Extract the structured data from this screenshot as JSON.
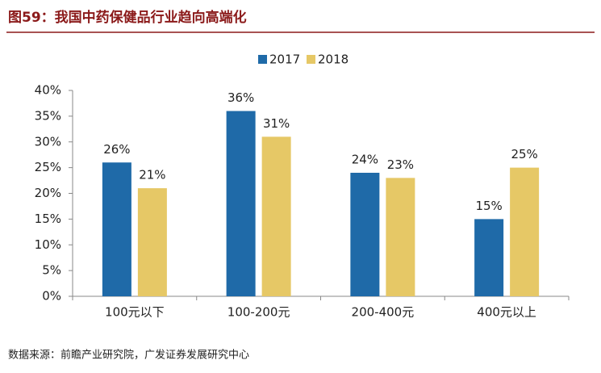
{
  "chart_data": {
    "type": "bar",
    "title": "图59：我国中药保健品行业趋向高端化",
    "source": "数据来源：前瞻产业研究院，广发证券发展研究中心",
    "categories": [
      "100元以下",
      "100-200元",
      "200-400元",
      "400元以上"
    ],
    "series": [
      {
        "name": "2017",
        "color": "#1f6aa8",
        "values": [
          26,
          36,
          24,
          15
        ],
        "value_labels": [
          "26%",
          "36%",
          "24%",
          "15%"
        ]
      },
      {
        "name": "2018",
        "color": "#e6c866",
        "values": [
          21,
          31,
          23,
          25
        ],
        "value_labels": [
          "21%",
          "31%",
          "23%",
          "25%"
        ]
      }
    ],
    "ylim": [
      0,
      40
    ],
    "yticks": [
      {
        "value": 0,
        "label": "0%"
      },
      {
        "value": 5,
        "label": "5%"
      },
      {
        "value": 10,
        "label": "10%"
      },
      {
        "value": 15,
        "label": "15%"
      },
      {
        "value": 20,
        "label": "20%"
      },
      {
        "value": 25,
        "label": "25%"
      },
      {
        "value": 30,
        "label": "30%"
      },
      {
        "value": 35,
        "label": "35%"
      },
      {
        "value": 40,
        "label": "40%"
      }
    ],
    "legend": "top"
  }
}
